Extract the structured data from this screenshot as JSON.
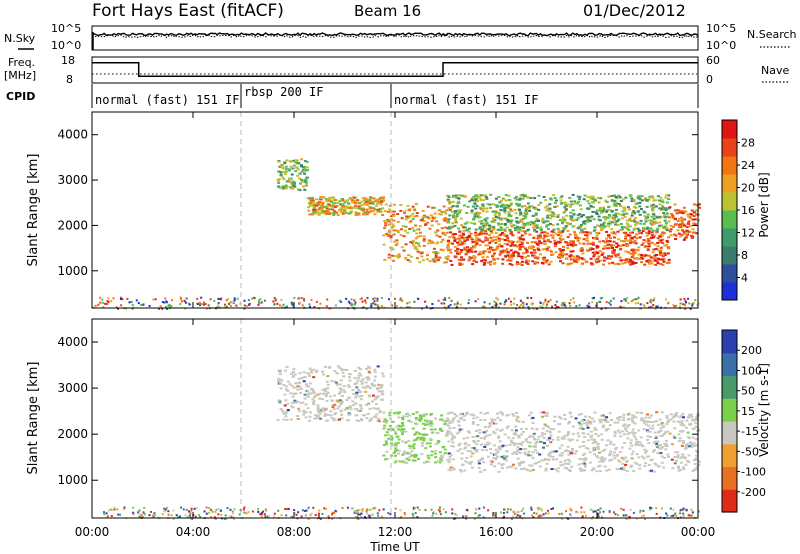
{
  "header": {
    "station": "Fort Hays East (fitACF)",
    "beam": "Beam 16",
    "date": "01/Dec/2012"
  },
  "noise_panel": {
    "left_label": "N.Sky",
    "right_label": "N.Search",
    "left_ticks": [
      "10^5",
      "10^0"
    ],
    "right_ticks": [
      "10^5",
      "10^0"
    ]
  },
  "freq_panel": {
    "left_label_1": "Freq.",
    "left_label_2": "[MHz]",
    "right_label": "Nave",
    "left_ticks": [
      "18",
      "8"
    ],
    "right_ticks": [
      "60",
      "0"
    ]
  },
  "cpid_panel": {
    "label": "CPID",
    "modes": [
      {
        "start": 0,
        "end": 6,
        "label": "normal (fast) 151 IF"
      },
      {
        "start": 6,
        "end": 12,
        "label": "rbsp 200 IF"
      },
      {
        "start": 12,
        "end": 24,
        "label": "normal (fast) 151 IF"
      }
    ]
  },
  "power_panel": {
    "ylabel": "Slant Range [km]",
    "yticks": [
      "1000",
      "2000",
      "3000",
      "4000"
    ],
    "colorbar_label": "Power [dB]",
    "colorbar_ticks": [
      "4",
      "8",
      "12",
      "16",
      "20",
      "24",
      "28"
    ],
    "colors": [
      "#1f2fd8",
      "#2e4e9c",
      "#3a7b6e",
      "#3f9b6b",
      "#5bbd4e",
      "#b9c435",
      "#f0a020",
      "#f27514",
      "#e8431a",
      "#e01515"
    ]
  },
  "velocity_panel": {
    "ylabel": "Slant Range [km]",
    "yticks": [
      "1000",
      "2000",
      "3000",
      "4000"
    ],
    "colorbar_label": "Velocity [m s-1]",
    "colorbar_ticks": [
      "200",
      "100",
      "50",
      "15",
      "-15",
      "-50",
      "-100",
      "-200"
    ],
    "colors": [
      "#2a3fb0",
      "#3a6fa8",
      "#4a9a6a",
      "#7ad04a",
      "#c8c8c0",
      "#f0a030",
      "#e87020",
      "#e02a18"
    ]
  },
  "time_axis": {
    "xlabel": "Time UT",
    "ticks": [
      "00:00",
      "04:00",
      "08:00",
      "12:00",
      "16:00",
      "20:00",
      "00:00"
    ]
  },
  "chart_data": [
    {
      "type": "line",
      "name": "noise",
      "x_range": [
        0,
        24
      ],
      "y_scale": "log",
      "ylim": [
        1,
        100000
      ]
    },
    {
      "type": "line",
      "name": "frequency",
      "x_range": [
        0,
        24
      ],
      "ylim": [
        8,
        18
      ],
      "series": [
        {
          "x": [
            0,
            1.85,
            1.85,
            13.9,
            13.9,
            24
          ],
          "values": [
            15.8,
            15.8,
            10.6,
            10.6,
            15.8,
            15.8
          ]
        }
      ]
    },
    {
      "type": "heatmap",
      "name": "power",
      "x_range": [
        0,
        24
      ],
      "ylim": [
        180,
        4500
      ],
      "scatter_regions": [
        {
          "t0": 7.3,
          "t1": 8.5,
          "r0": 2800,
          "r1": 3500,
          "level": 0.45
        },
        {
          "t0": 8.5,
          "t1": 11.5,
          "r0": 2250,
          "r1": 2650,
          "level": 0.65
        },
        {
          "t0": 11.5,
          "t1": 14.0,
          "r0": 1200,
          "r1": 2500,
          "level": 0.7
        },
        {
          "t0": 14.0,
          "t1": 22.8,
          "r0": 1150,
          "r1": 1900,
          "level": 0.85
        },
        {
          "t0": 14.0,
          "t1": 22.8,
          "r0": 1900,
          "r1": 2700,
          "level": 0.45
        },
        {
          "t0": 22.8,
          "t1": 24.0,
          "r0": 1700,
          "r1": 2500,
          "level": 0.8
        }
      ]
    },
    {
      "type": "heatmap",
      "name": "velocity",
      "x_range": [
        0,
        24
      ],
      "ylim": [
        180,
        4500
      ],
      "scatter_regions": [
        {
          "t0": 7.3,
          "t1": 11.5,
          "r0": 2300,
          "r1": 3500,
          "level": 0.0
        },
        {
          "t0": 11.5,
          "t1": 14.0,
          "r0": 1400,
          "r1": 2500,
          "level": 20.0
        },
        {
          "t0": 14.0,
          "t1": 24.0,
          "r0": 1200,
          "r1": 2500,
          "level": 0.0
        }
      ]
    }
  ]
}
